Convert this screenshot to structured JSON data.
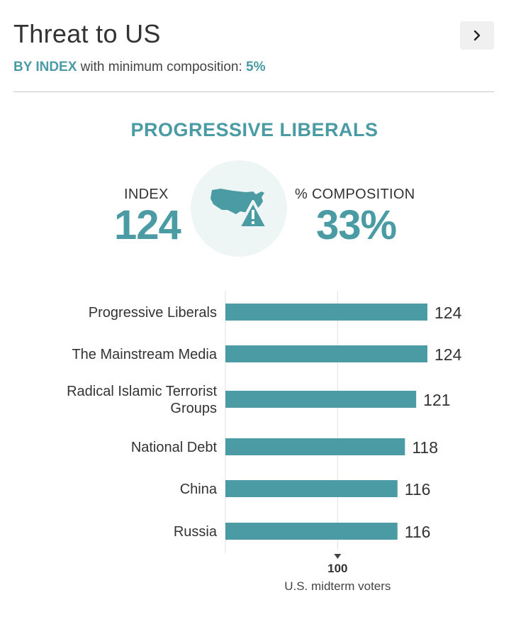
{
  "header": {
    "title": "Threat to US",
    "mode_label": "BY INDEX",
    "min_text": " with minimum composition: ",
    "min_value": "5%"
  },
  "summary": {
    "segment": "PROGRESSIVE LIBERALS",
    "index_label": "INDEX",
    "index_value": "124",
    "composition_label": "% COMPOSITION",
    "composition_value": "33%",
    "icon": "us-map-warning-icon"
  },
  "colors": {
    "accent": "#4a9ba3",
    "bar": "#4a9ba3",
    "icon_bg": "#eef5f5"
  },
  "chart_data": {
    "type": "bar",
    "orientation": "horizontal",
    "categories": [
      [
        "Progressive Liberals"
      ],
      [
        "The Mainstream Media"
      ],
      [
        "Radical Islamic Terrorist",
        "Groups"
      ],
      [
        "National Debt"
      ],
      [
        "China"
      ],
      [
        "Russia"
      ]
    ],
    "values": [
      124,
      124,
      121,
      118,
      116,
      116
    ],
    "reference": {
      "value": 100,
      "label": "100",
      "caption": "U.S. midterm voters"
    },
    "xlim": [
      70,
      130
    ]
  }
}
